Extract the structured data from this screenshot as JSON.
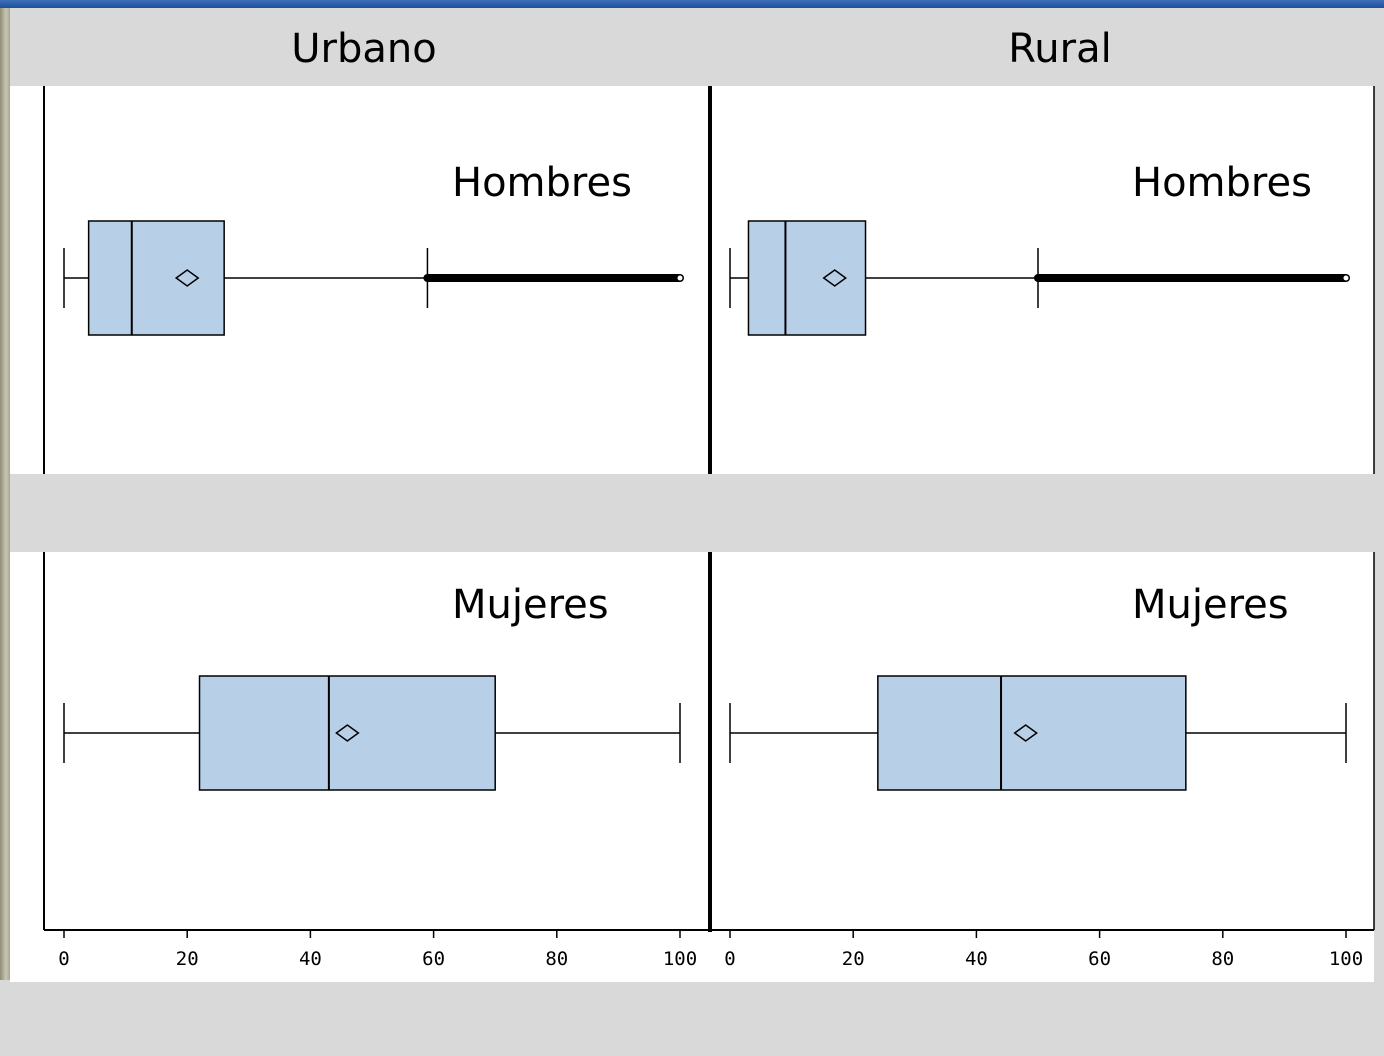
{
  "colors": {
    "box_fill": "#b8cfe8",
    "stroke": "#000000",
    "background": "#d9d9d9",
    "panel": "#ffffff",
    "titlebar": "#2b5ea8"
  },
  "chart_data": {
    "type": "boxplot",
    "orientation": "horizontal",
    "columns": [
      "Urbano",
      "Rural"
    ],
    "rows": [
      "Hombres",
      "Mujeres"
    ],
    "xlim": [
      0,
      100
    ],
    "xticks": [
      "0",
      "20",
      "40",
      "60",
      "80",
      "100"
    ],
    "grid": false,
    "panels": [
      {
        "column": "Urbano",
        "row": "Hombres",
        "whisker_low": 0,
        "q1": 4,
        "median": 11,
        "mean": 20,
        "q3": 26,
        "whisker_high": 59,
        "outliers_range": [
          59,
          100
        ]
      },
      {
        "column": "Rural",
        "row": "Hombres",
        "whisker_low": 0,
        "q1": 3,
        "median": 9,
        "mean": 17,
        "q3": 22,
        "whisker_high": 50,
        "outliers_range": [
          50,
          100
        ]
      },
      {
        "column": "Urbano",
        "row": "Mujeres",
        "whisker_low": 0,
        "q1": 22,
        "median": 43,
        "mean": 46,
        "q3": 70,
        "whisker_high": 100,
        "outliers_range": null
      },
      {
        "column": "Rural",
        "row": "Mujeres",
        "whisker_low": 0,
        "q1": 24,
        "median": 44,
        "mean": 48,
        "q3": 74,
        "whisker_high": 100,
        "outliers_range": null
      }
    ]
  }
}
